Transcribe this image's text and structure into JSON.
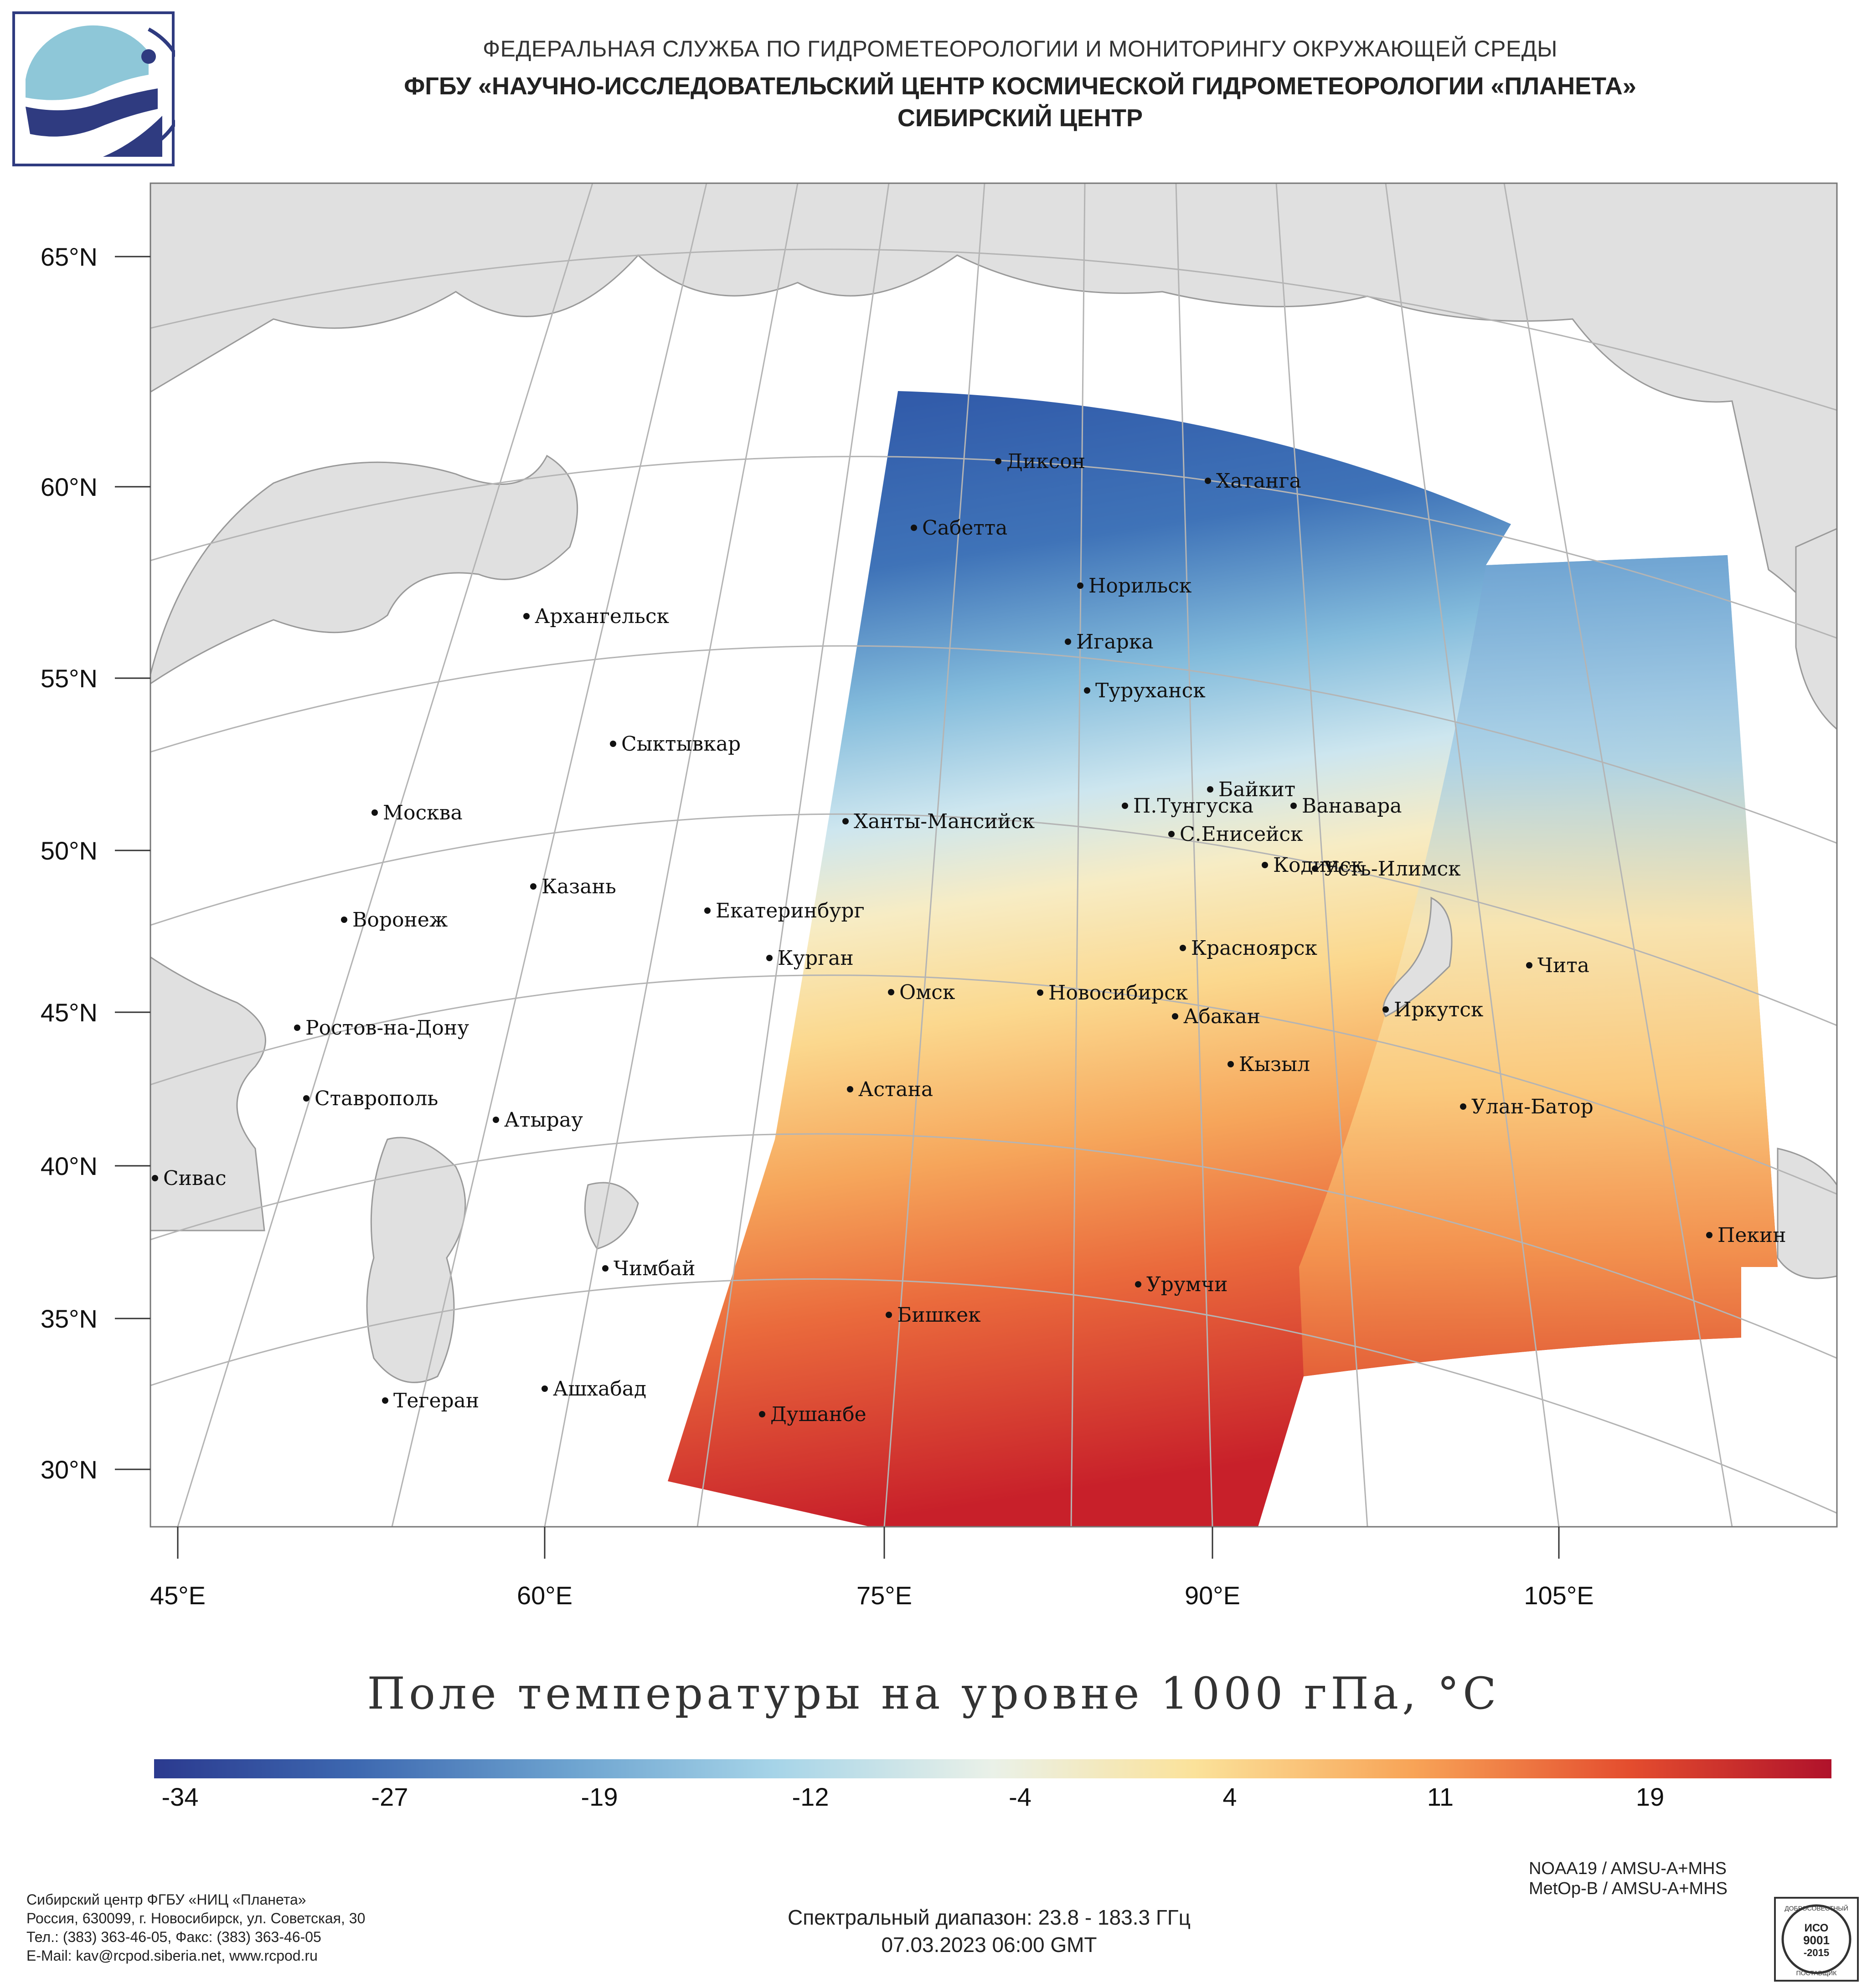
{
  "header": {
    "agency": "ФЕДЕРАЛЬНАЯ СЛУЖБА ПО ГИДРОМЕТЕОРОЛОГИИ И МОНИТОРИНГУ ОКРУЖАЮЩЕЙ СРЕДЫ",
    "institute": "ФГБУ «НАУЧНО-ИССЛЕДОВАТЕЛЬСКИЙ ЦЕНТР КОСМИЧЕСКОЙ ГИДРОМЕТЕОРОЛОГИИ «ПЛАНЕТА»",
    "center": "СИБИРСКИЙ ЦЕНТР"
  },
  "map": {
    "title": "Поле температуры на уровне 1000 гПа, °С",
    "lat_labels": [
      "65°N",
      "60°N",
      "55°N",
      "50°N",
      "45°N",
      "40°N",
      "35°N",
      "30°N"
    ],
    "lon_labels": [
      "45°E",
      "60°E",
      "75°E",
      "90°E",
      "105°E"
    ],
    "colors": {
      "land": "#e0e0e0",
      "water": "#ffffff",
      "border": "#9a9a9a",
      "graticule": "#b4b4b4"
    },
    "cities": [
      "Диксон",
      "Хатанга",
      "Сабетта",
      "Норильск",
      "Архангельск",
      "Игарка",
      "Туруханск",
      "Сыктывкар",
      "Байкит",
      "Москва",
      "П.Тунгуска",
      "Ванавара",
      "Ханты-Мансийск",
      "С.Енисейск",
      "Кодинск",
      "Усть-Илимск",
      "Казань",
      "Екатеринбург",
      "Воронеж",
      "Красноярск",
      "Курган",
      "Чита",
      "Омск",
      "Новосибирск",
      "Иркутск",
      "Абакан",
      "Ростов-на-Дону",
      "Кызыл",
      "Ставрополь",
      "Астана",
      "Улан-Батор",
      "Атырау",
      "Сивас",
      "Пекин",
      "Чимбай",
      "Урумчи",
      "Бишкек",
      "Ашхабад",
      "Тегеран",
      "Душанбе"
    ]
  },
  "colorbar": {
    "ticks": [
      "-34",
      "-27",
      "-19",
      "-12",
      "-4",
      "4",
      "11",
      "19"
    ],
    "colors": [
      "#2b3a8f",
      "#3d68b0",
      "#6ea4d0",
      "#a6d4e8",
      "#eaf1e8",
      "#fbe29a",
      "#f8a457",
      "#e44d2e",
      "#b0122b"
    ]
  },
  "footer": {
    "org_lines": [
      "Сибирский центр ФГБУ «НИЦ «Планета»",
      "Россия, 630099, г. Новосибирск, ул. Советская, 30",
      "Тел.: (383) 363-46-05, Факс: (383) 363-46-05",
      "E-Mail: kav@rcpod.siberia.net, www.rcpod.ru"
    ],
    "satellites": [
      "NOAA19 / AMSU-A+MHS",
      "MetOp-B / AMSU-A+MHS"
    ],
    "spectral": "Спектральный диапазон: 23.8 - 183.3 ГГц",
    "datetime": "07.03.2023 06:00 GMT",
    "iso_badge": [
      "ДОБРОСОВЕСТНЫЙ",
      "ИСО",
      "9001",
      "-2015",
      "ПОСТАВЩИК"
    ]
  }
}
